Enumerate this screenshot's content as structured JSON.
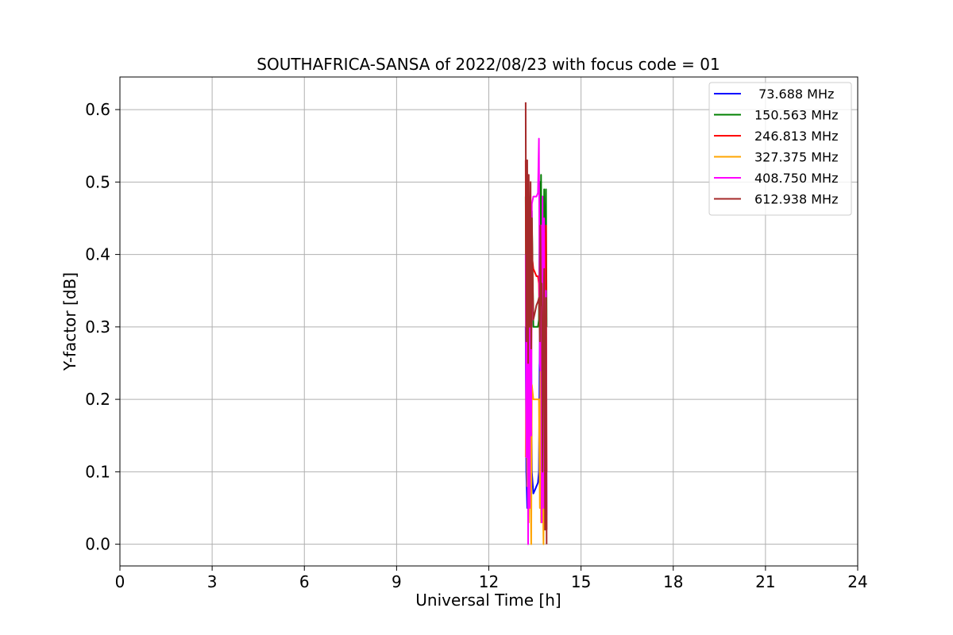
{
  "chart_data": {
    "type": "line",
    "title": "SOUTHAFRICA-SANSA of 2022/08/23 with focus code = 01",
    "xlabel": "Universal Time [h]",
    "ylabel": "Y-factor [dB]",
    "xlim": [
      0,
      24
    ],
    "ylim": [
      -0.03,
      0.645
    ],
    "xticks": [
      0,
      3,
      6,
      9,
      12,
      15,
      18,
      21,
      24
    ],
    "yticks": [
      0.0,
      0.1,
      0.2,
      0.3,
      0.4,
      0.5,
      0.6
    ],
    "xtick_labels": [
      "0",
      "3",
      "6",
      "9",
      "12",
      "15",
      "18",
      "21",
      "24"
    ],
    "ytick_labels": [
      "0.0",
      "0.1",
      "0.2",
      "0.3",
      "0.4",
      "0.5",
      "0.6"
    ],
    "grid": true,
    "legend_position": "top-right",
    "series": [
      {
        "name": " 73.688 MHz",
        "color": "#0000ff",
        "x": [
          13.2,
          13.22,
          13.25,
          13.28,
          13.3,
          13.33,
          13.36,
          13.38,
          13.4,
          13.45,
          13.5,
          13.55,
          13.6,
          13.63,
          13.66,
          13.68,
          13.7,
          13.72,
          13.75,
          13.78,
          13.8,
          13.83,
          13.86,
          13.88
        ],
        "y": [
          0.3,
          0.1,
          0.05,
          0.25,
          0.12,
          0.4,
          0.08,
          0.3,
          0.1,
          0.07,
          0.075,
          0.08,
          0.085,
          0.1,
          0.3,
          0.05,
          0.45,
          0.1,
          0.35,
          0.15,
          0.4,
          0.05,
          0.3,
          0.02
        ]
      },
      {
        "name": "150.563 MHz",
        "color": "#008000",
        "x": [
          13.2,
          13.22,
          13.25,
          13.28,
          13.3,
          13.33,
          13.36,
          13.38,
          13.4,
          13.45,
          13.5,
          13.55,
          13.6,
          13.63,
          13.66,
          13.68,
          13.7,
          13.72,
          13.75,
          13.78,
          13.8,
          13.83,
          13.86,
          13.88
        ],
        "y": [
          0.48,
          0.3,
          0.43,
          0.35,
          0.45,
          0.3,
          0.44,
          0.32,
          0.46,
          0.3,
          0.3,
          0.3,
          0.3,
          0.31,
          0.5,
          0.3,
          0.51,
          0.35,
          0.48,
          0.3,
          0.49,
          0.3,
          0.49,
          0.3
        ]
      },
      {
        "name": "246.813 MHz",
        "color": "#ff0000",
        "x": [
          13.2,
          13.22,
          13.25,
          13.28,
          13.3,
          13.33,
          13.36,
          13.38,
          13.4,
          13.45,
          13.5,
          13.55,
          13.6,
          13.63,
          13.66,
          13.68,
          13.7,
          13.72,
          13.75,
          13.78,
          13.8,
          13.83,
          13.86,
          13.88
        ],
        "y": [
          0.53,
          0.2,
          0.38,
          0.25,
          0.42,
          0.15,
          0.38,
          0.22,
          0.4,
          0.38,
          0.375,
          0.37,
          0.37,
          0.36,
          0.3,
          0.38,
          0.42,
          0.2,
          0.37,
          0.28,
          0.43,
          0.15,
          0.44,
          0.1
        ]
      },
      {
        "name": "327.375 MHz",
        "color": "#ffa500",
        "x": [
          13.2,
          13.22,
          13.25,
          13.28,
          13.3,
          13.33,
          13.36,
          13.38,
          13.4,
          13.45,
          13.5,
          13.55,
          13.6,
          13.63,
          13.66,
          13.68,
          13.7,
          13.72,
          13.75,
          13.78,
          13.8,
          13.83,
          13.86,
          13.88
        ],
        "y": [
          0.12,
          0.27,
          0.08,
          0.2,
          0.03,
          0.18,
          0.1,
          0.0,
          0.22,
          0.2,
          0.2,
          0.2,
          0.2,
          0.2,
          0.05,
          0.25,
          0.03,
          0.22,
          0.1,
          0.0,
          0.2,
          0.05,
          0.15,
          0.02
        ]
      },
      {
        "name": "408.750 MHz",
        "color": "#ff00ff",
        "x": [
          13.2,
          13.22,
          13.25,
          13.28,
          13.3,
          13.33,
          13.36,
          13.38,
          13.4,
          13.45,
          13.5,
          13.55,
          13.6,
          13.63,
          13.66,
          13.68,
          13.7,
          13.72,
          13.75,
          13.78,
          13.8,
          13.83,
          13.86,
          13.88
        ],
        "y": [
          0.4,
          0.12,
          0.35,
          0.0,
          0.46,
          0.05,
          0.43,
          0.15,
          0.47,
          0.48,
          0.48,
          0.48,
          0.485,
          0.56,
          0.25,
          0.24,
          0.44,
          0.03,
          0.48,
          0.05,
          0.45,
          0.05,
          0.35,
          0.04
        ]
      },
      {
        "name": "612.938 MHz",
        "color": "#a52a2a",
        "x": [
          13.2,
          13.22,
          13.25,
          13.28,
          13.3,
          13.33,
          13.36,
          13.38,
          13.4,
          13.45,
          13.5,
          13.55,
          13.6,
          13.63,
          13.66,
          13.68,
          13.7,
          13.72,
          13.75,
          13.78,
          13.8,
          13.83,
          13.86,
          13.88
        ],
        "y": [
          0.61,
          0.28,
          0.53,
          0.25,
          0.51,
          0.3,
          0.5,
          0.27,
          0.45,
          0.31,
          0.32,
          0.33,
          0.335,
          0.34,
          0.28,
          0.44,
          0.33,
          0.36,
          0.1,
          0.32,
          0.38,
          0.02,
          0.34,
          0.0
        ]
      }
    ]
  }
}
